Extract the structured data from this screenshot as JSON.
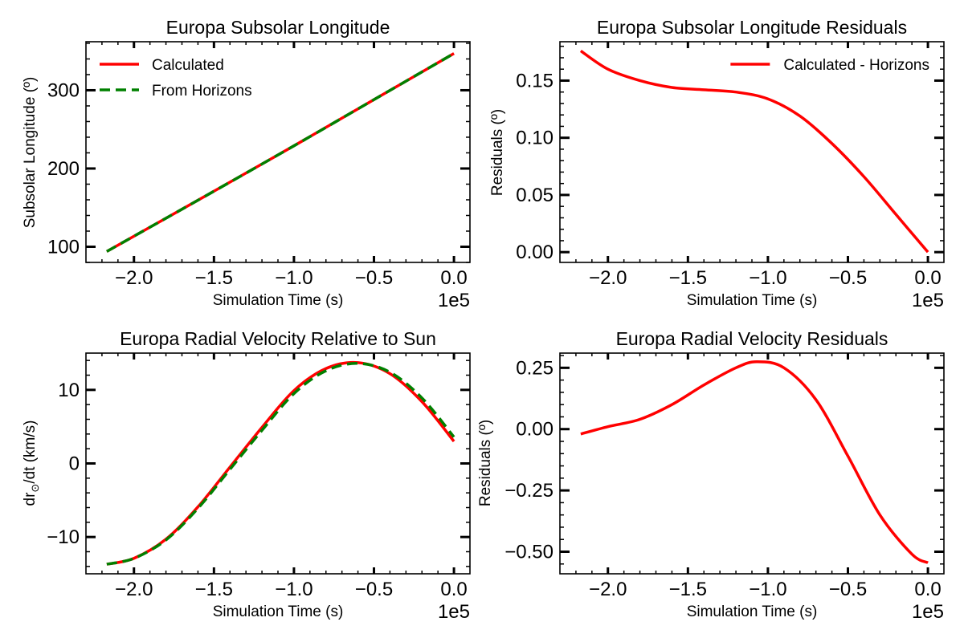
{
  "colors": {
    "calculated": "#ff0000",
    "horizons": "#008000",
    "axes": "#000000",
    "background": "#ffffff"
  },
  "chart_data": [
    {
      "type": "line",
      "title": "Europa Subsolar Longitude",
      "xlabel": "Simulation Time (s)",
      "ylabel": "Subsolar Longitude (º)",
      "x_offset_label": "1e5",
      "xlim": [
        -2.3,
        0.1
      ],
      "ylim": [
        80,
        362
      ],
      "xticks": [
        -2.0,
        -1.5,
        -1.0,
        -0.5,
        0.0
      ],
      "xtick_labels": [
        "−2.0",
        "−1.5",
        "−1.0",
        "−0.5",
        "0.0"
      ],
      "yticks": [
        100,
        200,
        300
      ],
      "ytick_labels": [
        "100",
        "200",
        "300"
      ],
      "legend": "top-left",
      "series": [
        {
          "name": "Calculated",
          "style": "solid",
          "color": "#ff0000",
          "x": [
            -2.17,
            -1.5,
            -1.0,
            -0.5,
            0.0
          ],
          "y": [
            94,
            171,
            229,
            288,
            347
          ]
        },
        {
          "name": "From Horizons",
          "style": "dashed",
          "color": "#008000",
          "x": [
            -2.17,
            -1.5,
            -1.0,
            -0.5,
            0.0
          ],
          "y": [
            94,
            171,
            229,
            288,
            347
          ]
        }
      ]
    },
    {
      "type": "line",
      "title": "Europa Subsolar Longitude Residuals",
      "xlabel": "Simulation Time (s)",
      "ylabel": "Residuals (º)",
      "x_offset_label": "1e5",
      "xlim": [
        -2.3,
        0.1
      ],
      "ylim": [
        -0.009,
        0.184
      ],
      "xticks": [
        -2.0,
        -1.5,
        -1.0,
        -0.5,
        0.0
      ],
      "xtick_labels": [
        "−2.0",
        "−1.5",
        "−1.0",
        "−0.5",
        "0.0"
      ],
      "yticks": [
        0.0,
        0.05,
        0.1,
        0.15
      ],
      "ytick_labels": [
        "0.00",
        "0.05",
        "0.10",
        "0.15"
      ],
      "legend": "top-right",
      "series": [
        {
          "name": "Calculated - Horizons",
          "style": "solid",
          "color": "#ff0000",
          "x": [
            -2.17,
            -2.0,
            -1.8,
            -1.6,
            -1.4,
            -1.2,
            -1.0,
            -0.8,
            -0.6,
            -0.4,
            -0.2,
            0.0
          ],
          "y": [
            0.176,
            0.16,
            0.15,
            0.144,
            0.142,
            0.14,
            0.134,
            0.119,
            0.095,
            0.066,
            0.033,
            0.0
          ]
        }
      ]
    },
    {
      "type": "line",
      "title": "Europa Radial Velocity Relative to Sun",
      "xlabel": "Simulation Time (s)",
      "ylabel_main": "dr",
      "ylabel_sub": "⊙",
      "ylabel_rest": "/dt (km/s)",
      "x_offset_label": "1e5",
      "xlim": [
        -2.3,
        0.1
      ],
      "ylim": [
        -15,
        15
      ],
      "xticks": [
        -2.0,
        -1.5,
        -1.0,
        -0.5,
        0.0
      ],
      "xtick_labels": [
        "−2.0",
        "−1.5",
        "−1.0",
        "−0.5",
        "0.0"
      ],
      "yticks": [
        -10,
        0,
        10
      ],
      "ytick_labels": [
        "−10",
        "0",
        "10"
      ],
      "legend": "none",
      "series": [
        {
          "name": "Calculated",
          "style": "solid",
          "color": "#ff0000",
          "x": [
            -2.17,
            -2.0,
            -1.8,
            -1.6,
            -1.4,
            -1.2,
            -1.0,
            -0.8,
            -0.6,
            -0.4,
            -0.2,
            0.0
          ],
          "y": [
            -13.7,
            -12.9,
            -10.3,
            -5.9,
            -0.5,
            4.9,
            9.9,
            12.9,
            13.7,
            12.2,
            8.4,
            3.0
          ]
        },
        {
          "name": "From Horizons",
          "style": "dashed",
          "color": "#008000",
          "x": [
            -2.17,
            -2.0,
            -1.8,
            -1.6,
            -1.4,
            -1.2,
            -1.0,
            -0.8,
            -0.6,
            -0.4,
            -0.2,
            0.0
          ],
          "y": [
            -13.7,
            -12.9,
            -10.4,
            -6.1,
            -0.8,
            4.5,
            9.5,
            12.6,
            13.6,
            12.4,
            8.9,
            3.6
          ]
        }
      ]
    },
    {
      "type": "line",
      "title": "Europa Radial Velocity Residuals",
      "xlabel": "Simulation Time (s)",
      "ylabel": "Residuals (º)",
      "x_offset_label": "1e5",
      "xlim": [
        -2.3,
        0.1
      ],
      "ylim": [
        -0.59,
        0.31
      ],
      "xticks": [
        -2.0,
        -1.5,
        -1.0,
        -0.5,
        0.0
      ],
      "xtick_labels": [
        "−2.0",
        "−1.5",
        "−1.0",
        "−0.5",
        "0.0"
      ],
      "yticks": [
        -0.5,
        -0.25,
        0.0,
        0.25
      ],
      "ytick_labels": [
        "−0.50",
        "−0.25",
        "0.00",
        "0.25"
      ],
      "legend": "none",
      "series": [
        {
          "name": "Calculated - Horizons",
          "style": "solid",
          "color": "#ff0000",
          "x": [
            -2.17,
            -2.0,
            -1.8,
            -1.6,
            -1.4,
            -1.2,
            -1.07,
            -0.9,
            -0.7,
            -0.5,
            -0.3,
            -0.1,
            0.0
          ],
          "y": [
            -0.02,
            0.01,
            0.04,
            0.1,
            0.18,
            0.25,
            0.275,
            0.25,
            0.12,
            -0.11,
            -0.35,
            -0.51,
            -0.545
          ]
        }
      ]
    }
  ]
}
